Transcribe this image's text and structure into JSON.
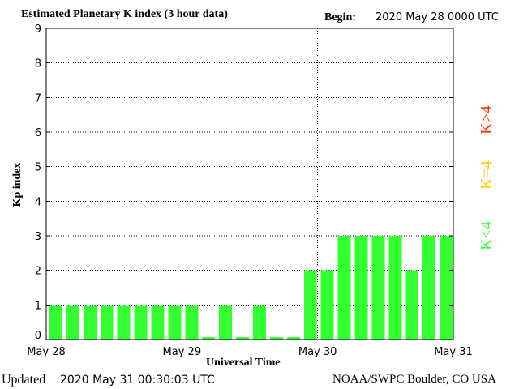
{
  "header": {
    "title": "Estimated Planetary K index (3 hour data)",
    "begin_label": "Begin:",
    "begin_value": "2020 May 28 0000 UTC"
  },
  "footer": {
    "updated_label": "Updated",
    "updated_value": "2020 May 31 00:30:03 UTC",
    "source": "NOAA/SWPC Boulder, CO USA"
  },
  "legend": [
    {
      "label": "K>4",
      "color": "#ff3300"
    },
    {
      "label": "K=4",
      "color": "#ffcc00"
    },
    {
      "label": "K<4",
      "color": "#33ff33"
    }
  ],
  "chart_data": {
    "type": "bar",
    "title": "Estimated Planetary K index (3 hour data)",
    "xlabel": "Universal Time",
    "ylabel": "Kp index",
    "ylim": [
      0,
      9
    ],
    "yticks": [
      "0",
      "1",
      "2",
      "3",
      "4",
      "5",
      "6",
      "7",
      "8",
      "9"
    ],
    "xticks": [
      "May 28",
      "May 29",
      "May 30",
      "May 31"
    ],
    "grid": true,
    "bar_color": "#33ff33",
    "values": [
      1,
      1,
      1,
      1,
      1,
      1,
      1,
      1,
      1,
      0,
      1,
      0,
      1,
      0,
      0,
      2,
      2,
      3,
      3,
      3,
      3,
      2,
      3,
      3
    ]
  }
}
